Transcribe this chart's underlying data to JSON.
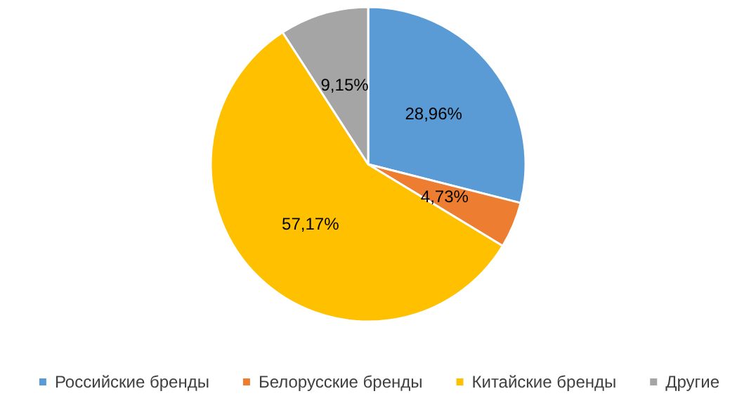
{
  "chart_data": {
    "type": "pie",
    "categories": [
      "Российские бренды",
      "Белорусские бренды",
      "Китайские бренды",
      "Другие"
    ],
    "values": [
      28.96,
      4.73,
      57.17,
      9.15
    ],
    "colors": [
      "#5b9bd5",
      "#ed7d31",
      "#ffc000",
      "#a5a5a5"
    ],
    "value_labels": [
      "28,96%",
      "4,73%",
      "57,17%",
      "9,15%"
    ],
    "legend": "bottom"
  }
}
